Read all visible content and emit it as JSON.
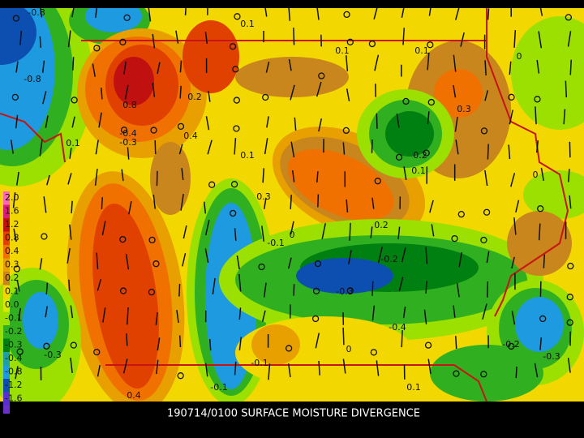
{
  "caption": "190714/0100 SURFACE MOISTURE DIVERGENCE",
  "legend": {
    "labels": [
      "2.0",
      "1.6",
      "1.2",
      "0.8",
      "0.4",
      "0.3",
      "0.2",
      "0.1",
      "0.0",
      "-0.1",
      "-0.2",
      "-0.3",
      "-0.4",
      "-0.8",
      "-1.2",
      "-1.6"
    ]
  },
  "contour_labels": [
    "-0.8",
    "0.1",
    "0.1",
    "0.1",
    "-0.8",
    "0.8",
    "0.2",
    "-0.4",
    "-0.3",
    "0.3",
    "0.1",
    "0.2",
    "0.1",
    "0.3",
    "0",
    "0.2",
    "-0.1",
    "-0.2",
    "-0.3",
    "-0.1",
    "0",
    "-0.2",
    "-0.4",
    "-0.3",
    "0",
    "-0.1",
    "0.4",
    "0.1",
    "0.1",
    "-0.3",
    "0",
    "0.4"
  ]
}
